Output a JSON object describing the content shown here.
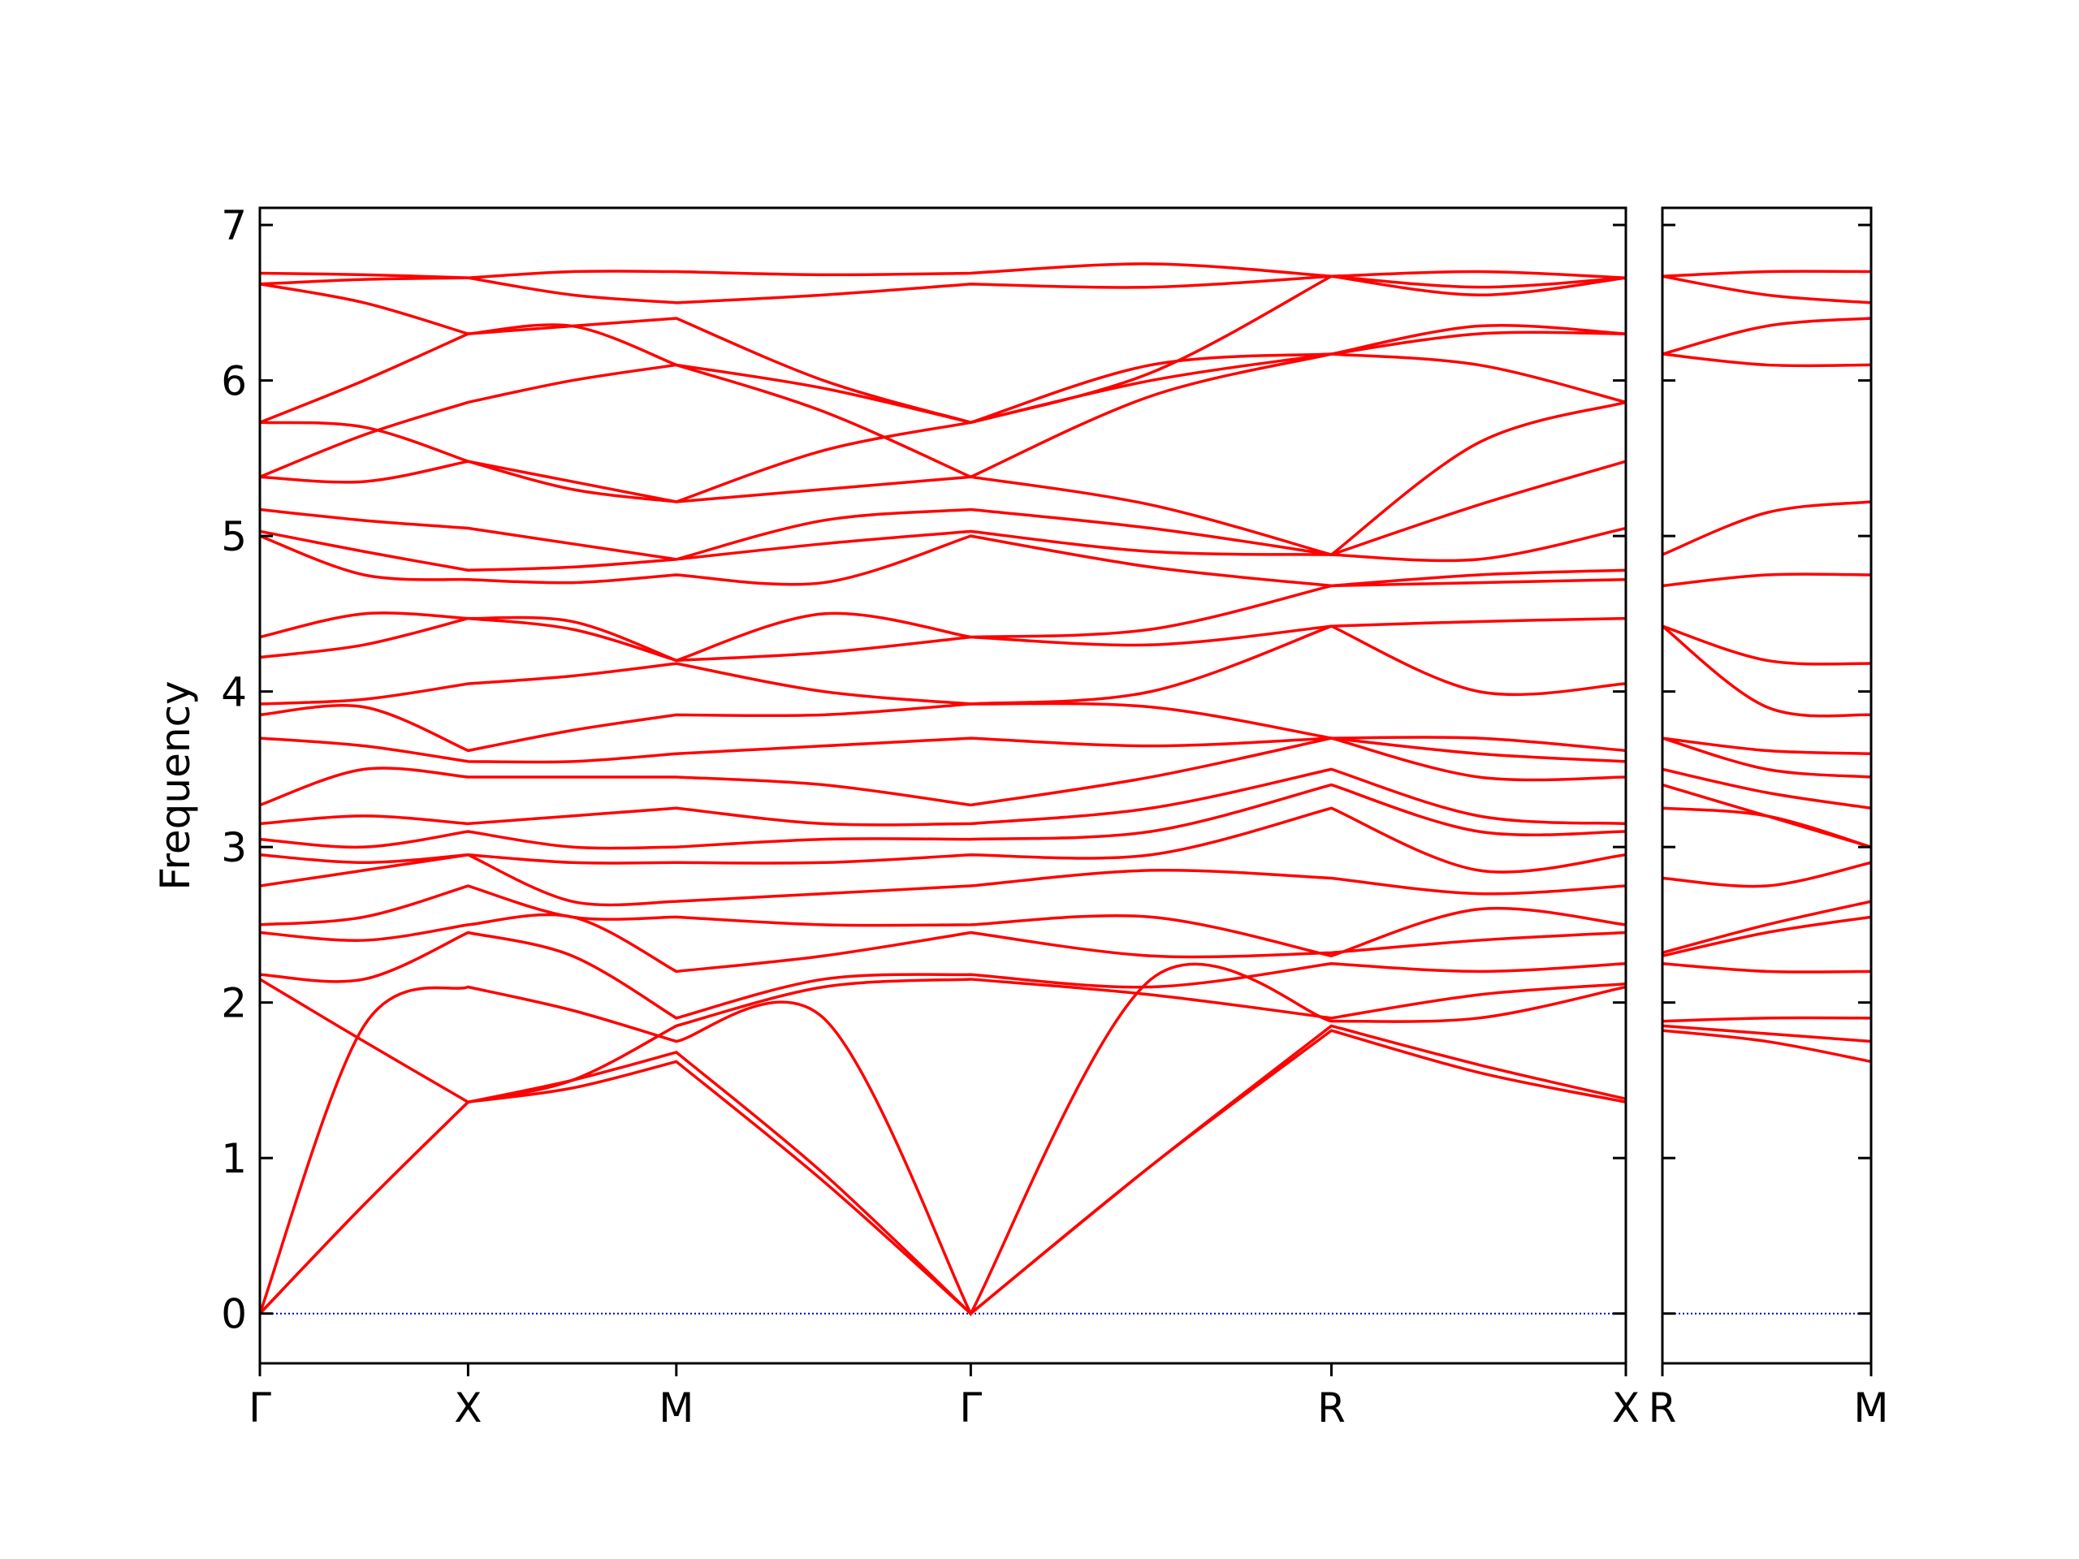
{
  "chart_data": [
    {
      "type": "line",
      "ylabel": "Frequency",
      "color": "#ff0000",
      "zero_line_color": "#0000aa",
      "ytick_labels": true,
      "xlim": [
        0,
        6.56
      ],
      "ylim": [
        -0.32,
        7.11
      ],
      "xticks": [
        {
          "value": 0,
          "label": "Γ"
        },
        {
          "value": 1,
          "label": "X"
        },
        {
          "value": 2,
          "label": "M"
        },
        {
          "value": 3.414,
          "label": "Γ"
        },
        {
          "value": 5.146,
          "label": "R"
        },
        {
          "value": 6.56,
          "label": "X"
        }
      ],
      "yticks": [
        0,
        1,
        2,
        3,
        4,
        5,
        6,
        7
      ],
      "x": [
        0,
        0.5,
        1,
        1.5,
        2,
        2.707,
        3.414,
        4.28,
        5.146,
        5.853,
        6.56
      ],
      "series": [
        {
          "values": [
            0,
            0.7,
            1.36,
            1.45,
            1.62,
            0.85,
            0,
            0.95,
            1.82,
            1.55,
            1.36
          ]
        },
        {
          "values": [
            0,
            0.7,
            1.36,
            1.5,
            1.68,
            0.9,
            0,
            0.95,
            1.85,
            1.6,
            1.38
          ]
        },
        {
          "values": [
            0,
            1.85,
            2.1,
            1.95,
            1.75,
            1.9,
            0,
            2.15,
            1.88,
            1.9,
            2.1
          ]
        },
        {
          "values": [
            2.15,
            1.75,
            1.36,
            1.5,
            1.85,
            2.1,
            2.15,
            2.05,
            1.9,
            2.05,
            2.12
          ]
        },
        {
          "values": [
            2.18,
            2.15,
            2.45,
            2.3,
            1.9,
            2.15,
            2.18,
            2.1,
            2.25,
            2.2,
            2.25
          ]
        },
        {
          "values": [
            2.45,
            2.4,
            2.5,
            2.55,
            2.2,
            2.3,
            2.45,
            2.3,
            2.32,
            2.4,
            2.45
          ]
        },
        {
          "values": [
            2.5,
            2.55,
            2.75,
            2.55,
            2.55,
            2.5,
            2.5,
            2.55,
            2.3,
            2.6,
            2.5
          ]
        },
        {
          "values": [
            2.75,
            2.85,
            2.95,
            2.65,
            2.65,
            2.7,
            2.75,
            2.85,
            2.8,
            2.7,
            2.75
          ]
        },
        {
          "values": [
            2.95,
            2.9,
            2.95,
            2.9,
            2.9,
            2.9,
            2.95,
            2.95,
            3.25,
            2.85,
            2.95
          ]
        },
        {
          "values": [
            3.05,
            3.0,
            3.1,
            3.0,
            3.0,
            3.05,
            3.05,
            3.1,
            3.4,
            3.1,
            3.1
          ]
        },
        {
          "values": [
            3.15,
            3.2,
            3.15,
            3.2,
            3.25,
            3.15,
            3.15,
            3.25,
            3.5,
            3.2,
            3.15
          ]
        },
        {
          "values": [
            3.27,
            3.5,
            3.45,
            3.45,
            3.45,
            3.4,
            3.27,
            3.45,
            3.7,
            3.45,
            3.45
          ]
        },
        {
          "values": [
            3.7,
            3.65,
            3.55,
            3.55,
            3.6,
            3.65,
            3.7,
            3.65,
            3.7,
            3.6,
            3.55
          ]
        },
        {
          "values": [
            3.85,
            3.9,
            3.62,
            3.75,
            3.85,
            3.85,
            3.92,
            3.9,
            3.7,
            3.7,
            3.62
          ]
        },
        {
          "values": [
            3.92,
            3.95,
            4.05,
            4.1,
            4.18,
            4.0,
            3.92,
            4.0,
            4.42,
            4.0,
            4.05
          ]
        },
        {
          "values": [
            4.22,
            4.3,
            4.47,
            4.4,
            4.2,
            4.25,
            4.35,
            4.3,
            4.42,
            4.45,
            4.47
          ]
        },
        {
          "values": [
            4.35,
            4.5,
            4.47,
            4.45,
            4.2,
            4.5,
            4.35,
            4.4,
            4.68,
            4.7,
            4.72
          ]
        },
        {
          "values": [
            5.0,
            4.75,
            4.72,
            4.7,
            4.75,
            4.7,
            5.0,
            4.8,
            4.68,
            4.75,
            4.78
          ]
        },
        {
          "values": [
            5.03,
            4.9,
            4.78,
            4.8,
            4.85,
            4.95,
            5.03,
            4.9,
            4.88,
            4.85,
            5.05
          ]
        },
        {
          "values": [
            5.17,
            5.1,
            5.05,
            4.95,
            4.85,
            5.1,
            5.17,
            5.05,
            4.88,
            5.2,
            5.48
          ]
        },
        {
          "values": [
            5.38,
            5.35,
            5.48,
            5.3,
            5.22,
            5.3,
            5.38,
            5.2,
            4.88,
            5.6,
            5.86
          ]
        },
        {
          "values": [
            5.38,
            5.65,
            5.86,
            6.0,
            6.1,
            5.8,
            5.38,
            5.9,
            6.17,
            6.1,
            5.86
          ]
        },
        {
          "values": [
            5.73,
            5.7,
            5.48,
            5.35,
            5.22,
            5.55,
            5.73,
            6.0,
            6.17,
            6.3,
            6.3
          ]
        },
        {
          "values": [
            5.73,
            6.0,
            6.3,
            6.35,
            6.4,
            6.0,
            5.73,
            6.1,
            6.17,
            6.35,
            6.3
          ]
        },
        {
          "values": [
            6.62,
            6.5,
            6.3,
            6.35,
            6.1,
            5.95,
            5.73,
            6.05,
            6.67,
            6.55,
            6.66
          ]
        },
        {
          "values": [
            6.62,
            6.65,
            6.66,
            6.55,
            6.5,
            6.55,
            6.62,
            6.6,
            6.67,
            6.6,
            6.66
          ]
        },
        {
          "values": [
            6.69,
            6.68,
            6.66,
            6.7,
            6.7,
            6.68,
            6.69,
            6.75,
            6.67,
            6.7,
            6.66
          ]
        }
      ]
    },
    {
      "type": "line",
      "color": "#ff0000",
      "zero_line_color": "#0000aa",
      "ytick_labels": false,
      "xlim": [
        0,
        1
      ],
      "ylim": [
        -0.32,
        7.11
      ],
      "xticks": [
        {
          "value": 0,
          "label": "R"
        },
        {
          "value": 1,
          "label": "M"
        }
      ],
      "yticks": [
        0,
        1,
        2,
        3,
        4,
        5,
        6,
        7
      ],
      "x": [
        0,
        0.5,
        1
      ],
      "series": [
        {
          "values": [
            1.82,
            1.75,
            1.62
          ]
        },
        {
          "values": [
            1.85,
            1.8,
            1.75
          ]
        },
        {
          "values": [
            1.88,
            1.9,
            1.9
          ]
        },
        {
          "values": [
            2.25,
            2.2,
            2.2
          ]
        },
        {
          "values": [
            2.3,
            2.45,
            2.55
          ]
        },
        {
          "values": [
            2.32,
            2.5,
            2.65
          ]
        },
        {
          "values": [
            2.8,
            2.75,
            2.9
          ]
        },
        {
          "values": [
            3.25,
            3.2,
            3.0
          ]
        },
        {
          "values": [
            3.4,
            3.2,
            3.0
          ]
        },
        {
          "values": [
            3.5,
            3.35,
            3.25
          ]
        },
        {
          "values": [
            3.7,
            3.5,
            3.45
          ]
        },
        {
          "values": [
            3.7,
            3.62,
            3.6
          ]
        },
        {
          "values": [
            4.42,
            4.2,
            4.18
          ]
        },
        {
          "values": [
            4.42,
            3.9,
            3.85
          ]
        },
        {
          "values": [
            4.68,
            4.75,
            4.75
          ]
        },
        {
          "values": [
            4.88,
            5.15,
            5.22
          ]
        },
        {
          "values": [
            6.17,
            6.1,
            6.1
          ]
        },
        {
          "values": [
            6.17,
            6.35,
            6.4
          ]
        },
        {
          "values": [
            6.67,
            6.55,
            6.5
          ]
        },
        {
          "values": [
            6.67,
            6.7,
            6.7
          ]
        }
      ]
    }
  ]
}
